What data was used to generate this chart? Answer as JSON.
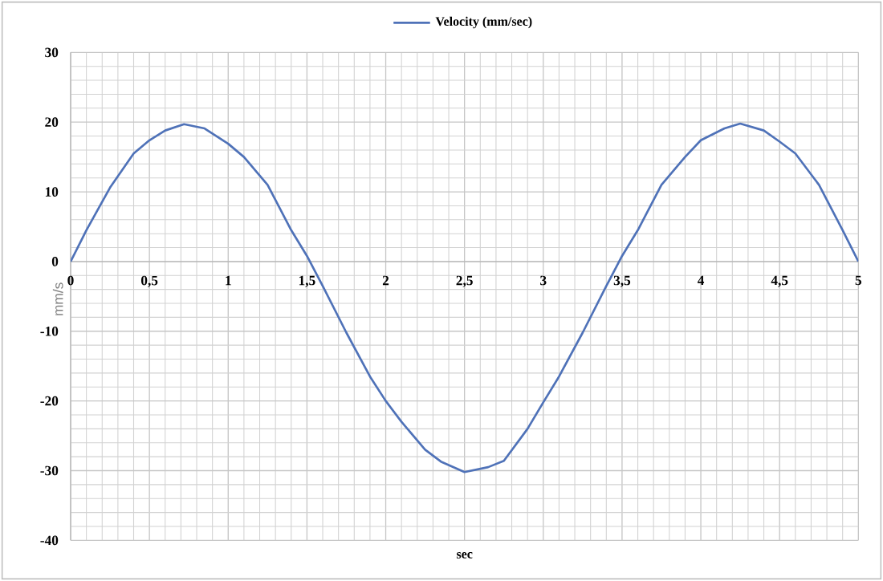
{
  "chart_data": {
    "type": "line",
    "xlabel": "sec",
    "ylabel": "mm/s",
    "x": [
      0,
      0.1,
      0.25,
      0.4,
      0.5,
      0.6,
      0.72,
      0.85,
      1,
      1.1,
      1.25,
      1.4,
      1.5,
      1.6,
      1.75,
      1.9,
      2,
      2.1,
      2.25,
      2.35,
      2.5,
      2.65,
      2.75,
      2.9,
      3,
      3.1,
      3.25,
      3.4,
      3.5,
      3.6,
      3.75,
      3.9,
      4,
      4.15,
      4.25,
      4.4,
      4.5,
      4.6,
      4.75,
      4.9,
      5
    ],
    "series": [
      {
        "name": "Velocity (mm/sec)",
        "color": "#4f72b8",
        "values": [
          0,
          4.5,
          10.6,
          15.5,
          17.4,
          18.8,
          19.7,
          19.1,
          16.9,
          15,
          11,
          4.5,
          0.8,
          -3.5,
          -10.2,
          -16.5,
          -20,
          -23,
          -27,
          -28.7,
          -30.2,
          -29.5,
          -28.6,
          -24,
          -20.2,
          -16.5,
          -10.2,
          -3.5,
          0.8,
          4.5,
          11,
          15,
          17.4,
          19.1,
          19.8,
          18.8,
          17.2,
          15.5,
          11,
          4.5,
          0
        ]
      }
    ],
    "xlim": [
      0,
      5
    ],
    "ylim": [
      -40,
      30
    ],
    "xticks": [
      0,
      {
        "value": 0.5,
        "label": "0,5"
      },
      1,
      {
        "value": 1.5,
        "label": "1,5"
      },
      2,
      {
        "value": 2.5,
        "label": "2,5"
      },
      3,
      {
        "value": 3.5,
        "label": "3,5"
      },
      4,
      {
        "value": 4.5,
        "label": "4,5"
      },
      5
    ],
    "yticks": [
      -40,
      -30,
      -20,
      -10,
      0,
      10,
      20,
      30
    ],
    "grid": true,
    "legend": "top",
    "marker": "none",
    "line_style": "solid"
  }
}
